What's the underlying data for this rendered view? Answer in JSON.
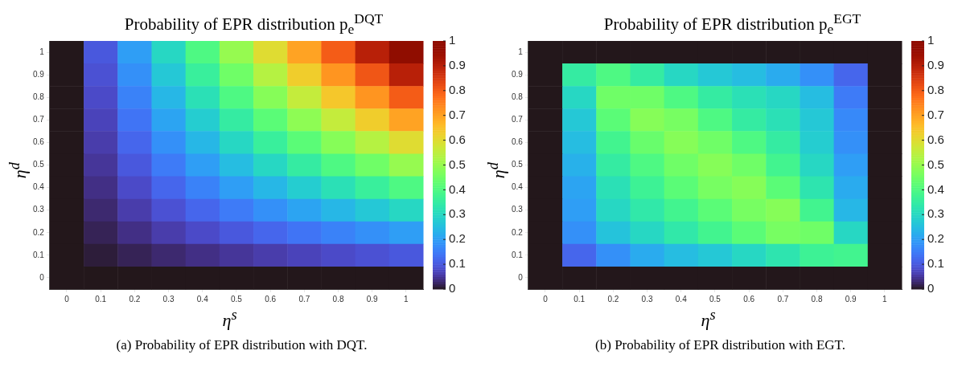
{
  "chart_data": [
    {
      "type": "heatmap",
      "title": "Probability of EPR distribution p$_{e}$$^{DQT}$",
      "xlabel": "η$^{s}$",
      "ylabel": "η$^{d}$",
      "annotations": [
        "(a) Probability of EPR distribution with DQT."
      ],
      "categories": [
        "0",
        "0.1",
        "0.2",
        "0.3",
        "0.4",
        "0.5",
        "0.6",
        "0.7",
        "0.8",
        "0.9",
        "1"
      ],
      "y_categories": [
        "1",
        "0.9",
        "0.8",
        "0.7",
        "0.6",
        "0.5",
        "0.4",
        "0.3",
        "0.2",
        "0.1",
        "0"
      ],
      "clim": [
        0,
        1
      ],
      "cticks": [
        0,
        0.1,
        0.2,
        0.3,
        0.4,
        0.5,
        0.6,
        0.7,
        0.8,
        0.9,
        1
      ],
      "cells": [
        [
          0,
          0.1,
          0.2,
          0.3,
          0.4,
          0.5,
          0.6,
          0.7,
          0.8,
          0.9,
          1
        ],
        [
          0,
          0.09,
          0.18,
          0.27,
          0.36,
          0.45,
          0.54,
          0.63,
          0.72,
          0.81,
          0.9
        ],
        [
          0,
          0.08,
          0.16,
          0.24,
          0.32,
          0.4,
          0.48,
          0.56,
          0.64,
          0.72,
          0.8
        ],
        [
          0,
          0.07,
          0.14,
          0.21,
          0.28,
          0.35,
          0.42,
          0.49,
          0.56,
          0.63,
          0.7
        ],
        [
          0,
          0.06,
          0.12,
          0.18,
          0.24,
          0.3,
          0.36,
          0.42,
          0.48,
          0.54,
          0.6
        ],
        [
          0,
          0.05,
          0.1,
          0.15,
          0.2,
          0.25,
          0.3,
          0.35,
          0.4,
          0.45,
          0.5
        ],
        [
          0,
          0.04,
          0.08,
          0.12,
          0.16,
          0.2,
          0.24,
          0.28,
          0.32,
          0.36,
          0.4
        ],
        [
          0,
          0.03,
          0.06,
          0.09,
          0.12,
          0.15,
          0.18,
          0.21,
          0.24,
          0.27,
          0.3
        ],
        [
          0,
          0.02,
          0.04,
          0.06,
          0.08,
          0.1,
          0.12,
          0.14,
          0.16,
          0.18,
          0.2
        ],
        [
          0,
          0.01,
          0.02,
          0.03,
          0.04,
          0.05,
          0.06,
          0.07,
          0.08,
          0.09,
          0.1
        ],
        [
          0,
          0,
          0,
          0,
          0,
          0,
          0,
          0,
          0,
          0,
          0
        ]
      ]
    },
    {
      "type": "heatmap",
      "title": "Probability of EPR distribution p$_{e}$$^{EGT}$",
      "xlabel": "η$^{s}$",
      "ylabel": "η$^{d}$",
      "annotations": [
        "(b) Probability of EPR distribution with EGT."
      ],
      "categories": [
        "0",
        "0.1",
        "0.2",
        "0.3",
        "0.4",
        "0.5",
        "0.6",
        "0.7",
        "0.8",
        "0.9",
        "1"
      ],
      "y_categories": [
        "1",
        "0.9",
        "0.8",
        "0.7",
        "0.6",
        "0.5",
        "0.4",
        "0.3",
        "0.2",
        "0.1",
        "0"
      ],
      "clim": [
        0,
        1
      ],
      "cticks": [
        0,
        0.1,
        0.2,
        0.3,
        0.4,
        0.5,
        0.6,
        0.7,
        0.8,
        0.9,
        1
      ],
      "cells": [
        [
          0,
          0,
          0,
          0,
          0,
          0,
          0,
          0,
          0,
          0,
          0
        ],
        [
          0,
          0.35,
          0.4,
          0.35,
          0.3,
          0.27,
          0.25,
          0.22,
          0.18,
          0.12,
          0
        ],
        [
          0,
          0.3,
          0.45,
          0.45,
          0.4,
          0.35,
          0.32,
          0.3,
          0.25,
          0.15,
          0
        ],
        [
          0,
          0.27,
          0.42,
          0.48,
          0.46,
          0.4,
          0.35,
          0.32,
          0.27,
          0.17,
          0
        ],
        [
          0,
          0.25,
          0.38,
          0.44,
          0.48,
          0.45,
          0.4,
          0.35,
          0.28,
          0.18,
          0
        ],
        [
          0,
          0.23,
          0.35,
          0.4,
          0.45,
          0.48,
          0.45,
          0.38,
          0.3,
          0.2,
          0
        ],
        [
          0,
          0.21,
          0.32,
          0.37,
          0.42,
          0.46,
          0.48,
          0.42,
          0.33,
          0.22,
          0
        ],
        [
          0,
          0.2,
          0.3,
          0.34,
          0.38,
          0.42,
          0.46,
          0.48,
          0.38,
          0.24,
          0
        ],
        [
          0,
          0.18,
          0.26,
          0.3,
          0.34,
          0.38,
          0.42,
          0.46,
          0.45,
          0.3,
          0
        ],
        [
          0,
          0.12,
          0.18,
          0.22,
          0.25,
          0.27,
          0.3,
          0.33,
          0.37,
          0.38,
          0
        ],
        [
          0,
          0,
          0,
          0,
          0,
          0,
          0,
          0,
          0,
          0,
          0
        ]
      ]
    }
  ]
}
